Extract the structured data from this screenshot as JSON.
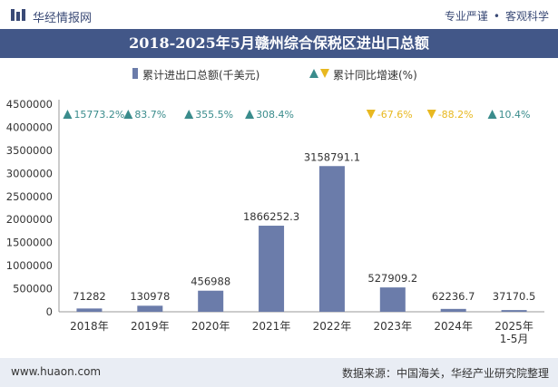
{
  "header": {
    "site_name": "华经情报网",
    "tagline_left": "专业严谨",
    "tagline_right": "客观科学"
  },
  "chart_data": {
    "type": "bar",
    "title": "2018-2025年5月赣州综合保税区进出口总额",
    "categories": [
      "2018年",
      "2019年",
      "2020年",
      "2021年",
      "2022年",
      "2023年",
      "2024年",
      "2025年\n1-5月"
    ],
    "series": [
      {
        "name": "累计进出口总额(千美元)",
        "values": [
          71282,
          130978,
          456988,
          1866252.3,
          3158791.1,
          527909.2,
          62236.7,
          37170.5
        ],
        "value_labels": [
          "71282",
          "130978",
          "456988",
          "1866252.3",
          "3158791.1",
          "527909.2",
          "62236.7",
          "37170.5"
        ]
      },
      {
        "name": "累计同比增速(%)",
        "values": [
          15773.2,
          83.7,
          355.5,
          308.4,
          null,
          -67.6,
          -88.2,
          10.4
        ],
        "value_labels": [
          "15773.2%",
          "83.7%",
          "355.5%",
          "308.4%",
          "",
          "-67.6%",
          "-88.2%",
          "10.4%"
        ]
      }
    ],
    "yticks": [
      "0",
      "500000",
      "1000000",
      "1500000",
      "2000000",
      "2500000",
      "3000000",
      "3500000",
      "4000000",
      "4500000"
    ],
    "ylim": [
      0,
      4500000
    ],
    "xlabel": "",
    "ylabel": "",
    "colors": {
      "bar": "#6b7caa",
      "up": "#3a8c8c",
      "down": "#e8b820",
      "title_bg": "#425788"
    }
  },
  "footer": {
    "website": "www.huaon.com",
    "source": "数据来源：中国海关，华经产业研究院整理"
  }
}
